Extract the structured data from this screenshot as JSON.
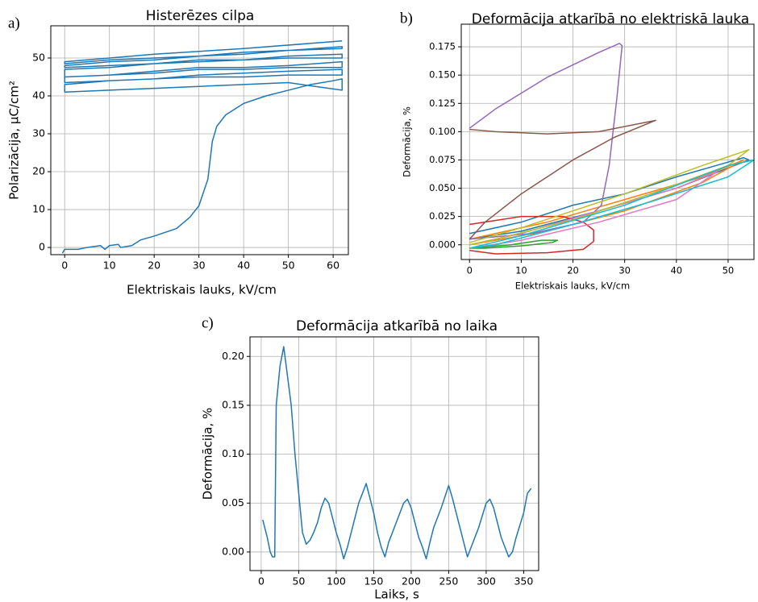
{
  "chart_data": [
    {
      "type": "line",
      "label": "a)",
      "title": "Histerēzes cilpa",
      "x_label": "Elektriskais lauks, kV/cm",
      "y_label": "Polarizācija, µC/cm²",
      "xlim": [
        -3.1,
        63.4
      ],
      "ylim": [
        -1.9,
        58.5
      ],
      "xticks": [
        0,
        10,
        20,
        30,
        40,
        50,
        60
      ],
      "yticks": [
        0,
        10,
        20,
        30,
        40,
        50
      ],
      "grid": true,
      "series": [
        {
          "color": "#1f77b4",
          "x": [
            -0.5,
            0,
            3,
            5,
            8,
            9,
            10,
            12,
            12.5,
            15,
            17,
            20,
            25,
            28,
            30,
            32,
            33,
            34,
            36,
            40,
            45,
            50,
            55,
            60,
            62,
            62,
            50,
            40,
            30,
            20,
            10,
            0,
            0,
            10,
            20,
            30,
            40,
            50,
            62,
            62,
            50,
            40,
            30,
            20,
            10,
            0,
            0,
            10,
            20,
            30,
            40,
            50,
            62,
            62,
            50,
            40,
            30,
            20,
            10,
            0,
            0,
            10,
            20,
            30,
            40,
            50,
            62,
            62,
            50,
            40,
            30,
            20,
            10,
            0,
            0,
            10,
            20,
            30,
            40,
            50,
            62,
            62,
            50,
            40,
            30,
            20,
            10,
            0,
            0,
            20,
            40,
            62
          ],
          "values": [
            -1.5,
            -0.5,
            -0.5,
            0,
            0.5,
            -0.5,
            0.5,
            0.8,
            0,
            0.5,
            2,
            3,
            5,
            8,
            11,
            18,
            28,
            32,
            35,
            38,
            40,
            41.5,
            43,
            44,
            44.5,
            41.5,
            43.5,
            43,
            42.5,
            42,
            41.5,
            41,
            43,
            44,
            44.5,
            45.5,
            46,
            46.5,
            47,
            45.5,
            45.5,
            45,
            45,
            44.5,
            44,
            43.5,
            45,
            45.5,
            46.5,
            47.5,
            47.5,
            48,
            49,
            47.5,
            47.5,
            47,
            47,
            46,
            45.5,
            45,
            47,
            47.5,
            48.5,
            49.5,
            49.5,
            50.5,
            51,
            50,
            50,
            49.5,
            49,
            48.5,
            48,
            47.5,
            48,
            49,
            49.5,
            50.5,
            51,
            52,
            53,
            52.5,
            52,
            51.5,
            50.5,
            50,
            49.5,
            48.5,
            49,
            51,
            52.5,
            54.5
          ]
        }
      ]
    },
    {
      "type": "line",
      "label": "b)",
      "title": "Deformācija atkarībā no elektriskā lauka",
      "x_label": "Elektriskais lauks, kV/cm",
      "y_label": "Deformācija, %",
      "xlim": [
        -1.6,
        55
      ],
      "ylim": [
        -0.013,
        0.195
      ],
      "xticks": [
        0,
        10,
        20,
        30,
        40,
        50
      ],
      "yticks": [
        {
          "value": 0,
          "label": "0.000"
        },
        {
          "value": 0.025,
          "label": "0.025"
        },
        {
          "value": 0.05,
          "label": "0.050"
        },
        {
          "value": 0.075,
          "label": "0.075"
        },
        {
          "value": 0.1,
          "label": "0.100"
        },
        {
          "value": 0.125,
          "label": "0.125"
        },
        {
          "value": 0.15,
          "label": "0.150"
        },
        {
          "value": 0.175,
          "label": "0.175"
        }
      ],
      "grid": true,
      "series": [
        {
          "color": "#1f77b4",
          "x": [
            0,
            10,
            20,
            30,
            40,
            53,
            54,
            40,
            25,
            10,
            0
          ],
          "values": [
            0.01,
            0.02,
            0.035,
            0.045,
            0.06,
            0.077,
            0.075,
            0.05,
            0.03,
            0.012,
            0.005
          ]
        },
        {
          "color": "#ff7f0e",
          "x": [
            0,
            15,
            30,
            45,
            53,
            45,
            30,
            15,
            0
          ],
          "values": [
            0.005,
            0.02,
            0.04,
            0.06,
            0.075,
            0.055,
            0.03,
            0.012,
            0
          ]
        },
        {
          "color": "#2ca02c",
          "x": [
            0,
            8,
            14,
            17,
            16,
            10,
            3,
            0
          ],
          "values": [
            -0.003,
            0,
            0.004,
            0.004,
            0.002,
            -0.001,
            -0.003,
            -0.003
          ]
        },
        {
          "color": "#d62728",
          "x": [
            0,
            10,
            18,
            22,
            24,
            24,
            22,
            15,
            5,
            0
          ],
          "values": [
            0.018,
            0.025,
            0.025,
            0.02,
            0.013,
            0.003,
            -0.004,
            -0.007,
            -0.008,
            -0.005
          ]
        },
        {
          "color": "#9467bd",
          "x": [
            0,
            5,
            15,
            25,
            29,
            29.5,
            28.5,
            27,
            25.5,
            22,
            12,
            0
          ],
          "values": [
            0.103,
            0.12,
            0.148,
            0.17,
            0.178,
            0.176,
            0.13,
            0.07,
            0.035,
            0.02,
            0.01,
            0.005
          ]
        },
        {
          "color": "#8c564b",
          "x": [
            0,
            5,
            15,
            25,
            36,
            28,
            20,
            10,
            3,
            0
          ],
          "values": [
            0.102,
            0.1,
            0.098,
            0.1,
            0.11,
            0.095,
            0.075,
            0.045,
            0.02,
            0.005
          ]
        },
        {
          "color": "#e377c2",
          "x": [
            0,
            10,
            25,
            40,
            48,
            40,
            25,
            10,
            0
          ],
          "values": [
            0,
            0.01,
            0.03,
            0.05,
            0.065,
            0.04,
            0.02,
            0.004,
            -0.003
          ]
        },
        {
          "color": "#bcbd22",
          "x": [
            0,
            10,
            30,
            45,
            54,
            50,
            35,
            20,
            5,
            0
          ],
          "values": [
            0.002,
            0.015,
            0.045,
            0.07,
            0.084,
            0.07,
            0.045,
            0.022,
            0.005,
            0
          ]
        },
        {
          "color": "#17becf",
          "x": [
            0,
            10,
            30,
            50,
            55,
            50,
            35,
            20,
            5,
            0
          ],
          "values": [
            -0.003,
            0.008,
            0.035,
            0.07,
            0.075,
            0.06,
            0.038,
            0.018,
            0,
            -0.003
          ]
        }
      ]
    },
    {
      "type": "line",
      "label": "c)",
      "title": "Deformācija atkarībā no laika",
      "x_label": "Laiks, s",
      "y_label": "Deformācija, %",
      "xlim": [
        -15,
        370
      ],
      "ylim": [
        -0.019,
        0.22
      ],
      "xticks": [
        0,
        50,
        100,
        150,
        200,
        250,
        300,
        350
      ],
      "yticks": [
        {
          "value": 0,
          "label": "0.00"
        },
        {
          "value": 0.05,
          "label": "0.05"
        },
        {
          "value": 0.1,
          "label": "0.10"
        },
        {
          "value": 0.15,
          "label": "0.15"
        },
        {
          "value": 0.2,
          "label": "0.20"
        }
      ],
      "grid": true,
      "series": [
        {
          "color": "#1f77b4",
          "x": [
            2,
            8,
            12,
            15,
            18,
            20,
            25,
            30,
            35,
            40,
            45,
            50,
            55,
            60,
            65,
            70,
            75,
            80,
            85,
            90,
            95,
            100,
            105,
            110,
            115,
            120,
            125,
            130,
            140,
            145,
            150,
            155,
            160,
            165,
            170,
            175,
            180,
            190,
            195,
            200,
            205,
            210,
            215,
            220,
            225,
            230,
            240,
            250,
            255,
            260,
            265,
            270,
            275,
            280,
            290,
            300,
            305,
            310,
            315,
            320,
            330,
            335,
            340,
            350,
            355,
            360
          ],
          "values": [
            0.033,
            0.015,
            0,
            -0.005,
            -0.005,
            0.15,
            0.19,
            0.21,
            0.18,
            0.15,
            0.1,
            0.06,
            0.02,
            0.008,
            0.012,
            0.02,
            0.03,
            0.045,
            0.055,
            0.05,
            0.035,
            0.02,
            0.008,
            -0.007,
            0.005,
            0.02,
            0.035,
            0.05,
            0.07,
            0.055,
            0.04,
            0.02,
            0.005,
            -0.005,
            0.01,
            0.02,
            0.03,
            0.05,
            0.054,
            0.045,
            0.03,
            0.015,
            0.005,
            -0.007,
            0.01,
            0.025,
            0.045,
            0.068,
            0.055,
            0.04,
            0.025,
            0.01,
            -0.005,
            0.005,
            0.025,
            0.05,
            0.054,
            0.045,
            0.03,
            0.015,
            -0.005,
            0,
            0.015,
            0.04,
            0.06,
            0.065
          ]
        }
      ]
    }
  ]
}
